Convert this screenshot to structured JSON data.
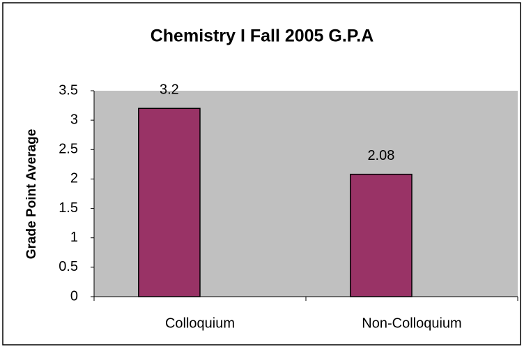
{
  "chart_data": {
    "type": "bar",
    "title": "Chemistry I Fall 2005 G.P.A",
    "y_label": "Grade Point Average",
    "categories": [
      "Colloquium",
      "Non-Colloquium"
    ],
    "values": [
      3.2,
      2.08
    ],
    "color": "#993366",
    "ylim": [
      0,
      3.5
    ],
    "yticks": [
      0,
      0.5,
      1,
      1.5,
      2,
      2.5,
      3,
      3.5
    ],
    "grid": false
  }
}
